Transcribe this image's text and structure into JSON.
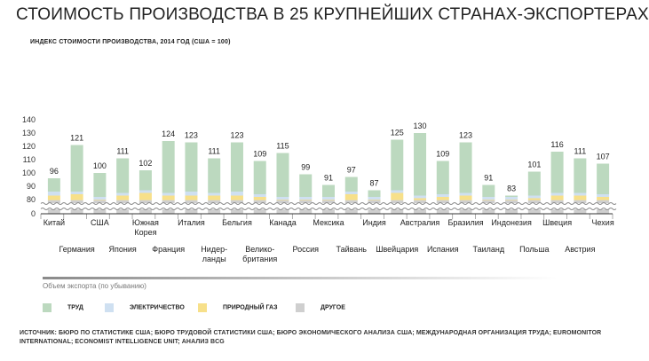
{
  "title": "СТОИМОСТЬ ПРОИЗВОДСТВА В 25 КРУПНЕЙШИХ СТРАНАХ-ЭКСПОРТЕРАХ",
  "subtitle": "ИНДЕКС СТОИМОСТИ ПРОИЗВОДСТВА, 2014 ГОД (США = 100)",
  "xaxis_caption": "Объем экспорта (по убыванию)",
  "source": "ИСТОЧНИК: БЮРО ПО СТАТИСТИКЕ США; БЮРО ТРУДОВОЙ СТАТИСТИКИ США; БЮРО ЭКОНОМИЧЕСКОГО АНАЛИЗА США; МЕЖДУНАРОДНАЯ ОРГАНИЗАЦИЯ ТРУДА; EUROMONITOR INTERNATIONAL; ECONOMIST INTELLIGENCE UNIT; АНАЛИЗ BCG",
  "legend": [
    {
      "label": "ТРУД",
      "color": "#bcd9bf"
    },
    {
      "label": "ЭЛЕКТРИЧЕСТВО",
      "color": "#cfe0f1"
    },
    {
      "label": "ПРИРОДНЫЙ ГАЗ",
      "color": "#f7e08a"
    },
    {
      "label": "ДРУГОЕ",
      "color": "#cfcfcf"
    }
  ],
  "chart_data": {
    "type": "bar",
    "stacked": true,
    "ylim": [
      0,
      140
    ],
    "yticks": [
      0,
      80,
      90,
      100,
      110,
      120,
      130,
      140
    ],
    "axis_break": true,
    "categories": [
      [
        "Китай"
      ],
      [
        "Германия"
      ],
      [
        "США"
      ],
      [
        "Япония"
      ],
      [
        "Южная",
        "Корея"
      ],
      [
        "Франция"
      ],
      [
        "Италия"
      ],
      [
        "Нидер-",
        "ланды"
      ],
      [
        "Бельгия"
      ],
      [
        "Велико-",
        "британия"
      ],
      [
        "Канада"
      ],
      [
        "Россия"
      ],
      [
        "Мексика"
      ],
      [
        "Тайвань"
      ],
      [
        "Индия"
      ],
      [
        "Швейцария"
      ],
      [
        "Австралия"
      ],
      [
        "Испания"
      ],
      [
        "Бразилия"
      ],
      [
        "Таиланд"
      ],
      [
        "Индонезия"
      ],
      [
        "Польша"
      ],
      [
        "Швеция"
      ],
      [
        "Австрия"
      ],
      [
        "Чехия"
      ]
    ],
    "totals": [
      96,
      121,
      100,
      111,
      102,
      124,
      123,
      111,
      123,
      109,
      115,
      99,
      91,
      97,
      87,
      125,
      130,
      109,
      123,
      91,
      83,
      101,
      116,
      111,
      107
    ],
    "series": [
      {
        "name": "ДРУГОЕ",
        "values": [
          77,
          77,
          77,
          77,
          77,
          77,
          77,
          77,
          77,
          77,
          77,
          77,
          77,
          77,
          77,
          77,
          77,
          77,
          77,
          77,
          77,
          77,
          77,
          77,
          77
        ]
      },
      {
        "name": "ПРИРОДНЫЙ ГАЗ",
        "values": [
          6,
          7,
          3,
          6,
          8,
          6,
          6,
          6,
          6,
          5,
          3,
          3,
          3,
          7,
          3,
          8,
          4,
          5,
          6,
          3,
          3,
          4,
          6,
          6,
          5
        ]
      },
      {
        "name": "ЭЛЕКТРИЧЕСТВО",
        "values": [
          3,
          2,
          2,
          2,
          2,
          2,
          3,
          2,
          3,
          2,
          2,
          2,
          2,
          2,
          2,
          2,
          2,
          2,
          2,
          2,
          2,
          2,
          2,
          2,
          2
        ]
      },
      {
        "name": "ТРУД",
        "values": [
          10,
          35,
          18,
          26,
          15,
          39,
          37,
          26,
          37,
          25,
          33,
          17,
          9,
          11,
          5,
          38,
          47,
          25,
          38,
          9,
          1,
          18,
          31,
          26,
          23
        ]
      }
    ]
  }
}
